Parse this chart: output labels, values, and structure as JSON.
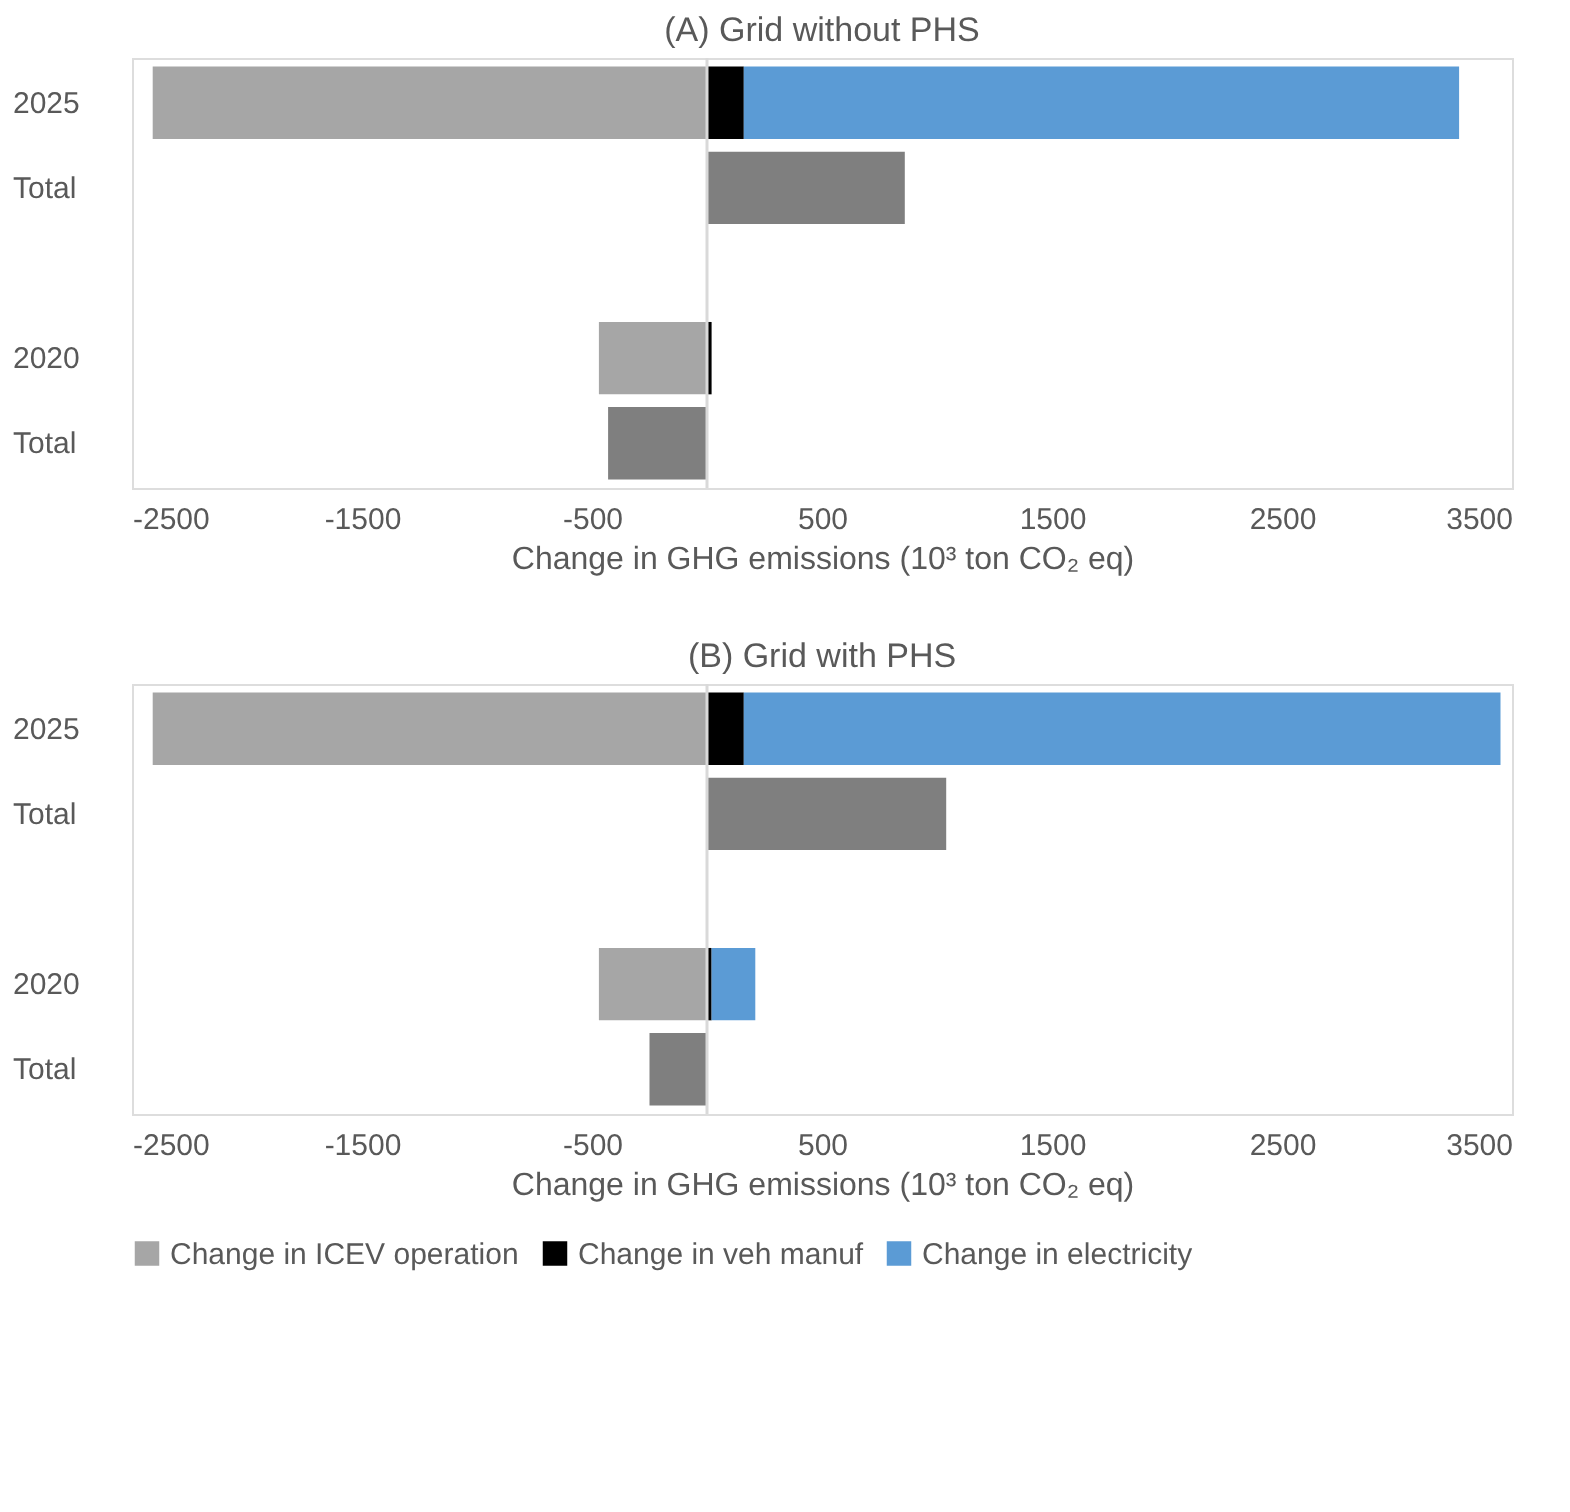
{
  "chart_data": [
    {
      "type": "bar",
      "orientation": "horizontal",
      "stacked": true,
      "title": "(A) Grid without PHS",
      "xlabel": "Change in GHG emissions (10³ ton CO₂ eq)",
      "categories": [
        "2025",
        "Total",
        null,
        "2020",
        "Total"
      ],
      "series": [
        {
          "name": "Change in ICEV operation",
          "color": "#a6a6a6",
          "values": [
            -2410,
            null,
            null,
            -470,
            null
          ]
        },
        {
          "name": "Change in veh manuf",
          "color": "#000000",
          "values": [
            160,
            null,
            null,
            20,
            null
          ]
        },
        {
          "name": "Change in electricity",
          "color": "#5b9bd5",
          "values": [
            3110,
            null,
            null,
            null,
            null
          ]
        },
        {
          "color": "#7f7f7f",
          "values": [
            null,
            860,
            null,
            null,
            -430
          ]
        }
      ],
      "xlim": [
        -2500,
        3500
      ],
      "xticks": [
        -2500,
        -1500,
        -500,
        500,
        1500,
        2500,
        3500
      ],
      "ref_lines": [
        {
          "axis": "x",
          "value": 0,
          "color": "#d9d9d9"
        }
      ],
      "grid": false,
      "legend": "bottom"
    },
    {
      "type": "bar",
      "orientation": "horizontal",
      "stacked": true,
      "title": "(B) Grid with PHS",
      "xlabel": "Change in GHG emissions (10³ ton CO₂ eq)",
      "categories": [
        "2025",
        "Total",
        null,
        "2020",
        "Total"
      ],
      "series": [
        {
          "name": "Change in ICEV operation",
          "color": "#a6a6a6",
          "values": [
            -2410,
            null,
            null,
            -470,
            null
          ]
        },
        {
          "name": "Change in veh manuf",
          "color": "#000000",
          "values": [
            160,
            null,
            null,
            20,
            null
          ]
        },
        {
          "name": "Change in electricity",
          "color": "#5b9bd5",
          "values": [
            3290,
            null,
            null,
            190,
            null
          ]
        },
        {
          "color": "#7f7f7f",
          "values": [
            null,
            1040,
            null,
            null,
            -250
          ]
        }
      ],
      "xlim": [
        -2500,
        3500
      ],
      "xticks": [
        -2500,
        -1500,
        -500,
        500,
        1500,
        2500,
        3500
      ],
      "ref_lines": [
        {
          "axis": "x",
          "value": 0,
          "color": "#d9d9d9"
        }
      ],
      "grid": false,
      "legend": "bottom"
    }
  ]
}
